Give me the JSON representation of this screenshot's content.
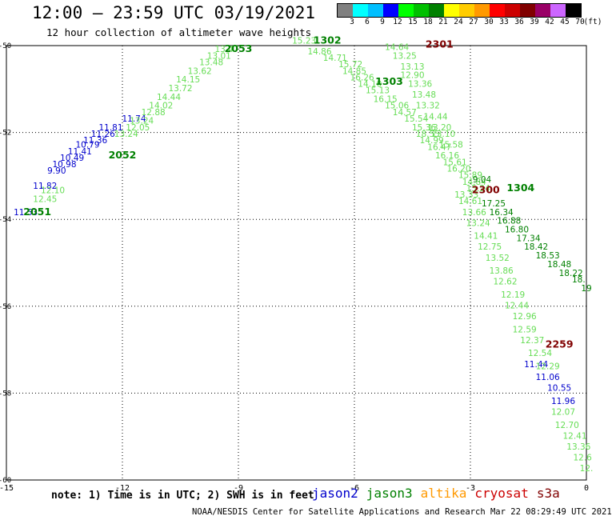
{
  "title": "12:00 – 23:59 UTC 03/19/2021",
  "subtitle": "12 hour collection of altimeter wave heights",
  "legend": {
    "unit": "(ft)",
    "colors": [
      "#808080",
      "#00ffff",
      "#00bfff",
      "#0000ff",
      "#00ff00",
      "#00c000",
      "#008000",
      "#ffff00",
      "#ffcc00",
      "#ff9900",
      "#ff0000",
      "#cc0000",
      "#800000",
      "#990066",
      "#cc66ff",
      "#000000"
    ],
    "labels": [
      "3",
      "6",
      "9",
      "12",
      "15",
      "18",
      "21",
      "24",
      "27",
      "30",
      "33",
      "36",
      "39",
      "42",
      "45",
      "70"
    ]
  },
  "note": "note: 1) Time is in UTC; 2) SWH is in feet",
  "satellites": [
    {
      "name": "jason2",
      "color": "#0000cc"
    },
    {
      "name": "jason3",
      "color": "#008000"
    },
    {
      "name": "altika",
      "color": "#ff9900"
    },
    {
      "name": "cryosat",
      "color": "#cc0000"
    },
    {
      "name": "s3a",
      "color": "#800000"
    }
  ],
  "credit": "NOAA/NESDIS Center for Satellite Applications and Research   Mar 22 08:29:49 UTC 2021",
  "chart_data": {
    "type": "scatter",
    "xlim": [
      -15,
      0
    ],
    "ylim": [
      -60,
      -50
    ],
    "x_ticks": [
      -15,
      -12,
      -9,
      -6,
      -3,
      0
    ],
    "y_ticks": [
      -50,
      -52,
      -54,
      -56,
      -58,
      -60
    ],
    "grid": true,
    "colors": {
      "jason2": "#0000cc",
      "jason3": "#008000",
      "jason3_light": "#66dd55",
      "s3a": "#800000"
    },
    "pass_labels": [
      {
        "text": "2053",
        "x": -9.0,
        "y": -50.15,
        "color": "#008000"
      },
      {
        "text": "2052",
        "x": -12.0,
        "y": -52.6,
        "color": "#008000"
      },
      {
        "text": "2051",
        "x": -14.2,
        "y": -53.9,
        "color": "#008000"
      },
      {
        "text": "1302",
        "x": -6.7,
        "y": -49.95,
        "color": "#008000"
      },
      {
        "text": "1303",
        "x": -5.1,
        "y": -50.9,
        "color": "#008000"
      },
      {
        "text": "1304",
        "x": -1.7,
        "y": -53.35,
        "color": "#008000"
      },
      {
        "text": "2301",
        "x": -3.8,
        "y": -50.05,
        "color": "#800000"
      },
      {
        "text": "2300",
        "x": -2.6,
        "y": -53.4,
        "color": "#800000"
      },
      {
        "text": "2259",
        "x": -0.7,
        "y": -56.95,
        "color": "#800000"
      }
    ],
    "series": [
      {
        "name": "jason2",
        "color": "#0000cc",
        "points": [
          {
            "x": -14.5,
            "y": -53.9,
            "v": "11.53"
          },
          {
            "x": -14.0,
            "y": -53.3,
            "v": "11.82"
          },
          {
            "x": -13.7,
            "y": -52.95,
            "v": "9.90"
          },
          {
            "x": -13.5,
            "y": -52.8,
            "v": "10.98"
          },
          {
            "x": -13.3,
            "y": -52.65,
            "v": "10.49"
          },
          {
            "x": -13.1,
            "y": -52.5,
            "v": "11.41"
          },
          {
            "x": -12.9,
            "y": -52.35,
            "v": "10.79"
          },
          {
            "x": -12.7,
            "y": -52.25,
            "v": "11.36"
          },
          {
            "x": -12.5,
            "y": -52.1,
            "v": "11.26"
          },
          {
            "x": -12.3,
            "y": -51.95,
            "v": "11.81"
          },
          {
            "x": -11.7,
            "y": -51.75,
            "v": "11.74"
          },
          {
            "x": -1.3,
            "y": -57.4,
            "v": "11.44"
          },
          {
            "x": -1.0,
            "y": -57.7,
            "v": "11.06"
          },
          {
            "x": -0.7,
            "y": -57.95,
            "v": "10.55"
          },
          {
            "x": -0.6,
            "y": -58.25,
            "v": "11.96"
          }
        ]
      },
      {
        "name": "jason3",
        "color": "#66dd55",
        "points": [
          {
            "x": -14.0,
            "y": -53.6,
            "v": "12.45"
          },
          {
            "x": -13.8,
            "y": -53.4,
            "v": "12.10"
          },
          {
            "x": -9.3,
            "y": -50.15,
            "v": "13.47"
          },
          {
            "x": -9.5,
            "y": -50.3,
            "v": "13.01"
          },
          {
            "x": -9.7,
            "y": -50.45,
            "v": "13.48"
          },
          {
            "x": -10.0,
            "y": -50.65,
            "v": "13.62"
          },
          {
            "x": -10.3,
            "y": -50.85,
            "v": "14.15"
          },
          {
            "x": -10.5,
            "y": -51.05,
            "v": "13.72"
          },
          {
            "x": -10.8,
            "y": -51.25,
            "v": "14.44"
          },
          {
            "x": -11.0,
            "y": -51.45,
            "v": "14.02"
          },
          {
            "x": -11.2,
            "y": -51.6,
            "v": "12.88"
          },
          {
            "x": -11.5,
            "y": -51.8,
            "v": "13.24"
          },
          {
            "x": -11.6,
            "y": -51.95,
            "v": "12.05"
          },
          {
            "x": -11.9,
            "y": -52.1,
            "v": "13.24"
          },
          {
            "x": -7.3,
            "y": -49.95,
            "v": "15.23"
          },
          {
            "x": -6.9,
            "y": -50.2,
            "v": "14.86"
          },
          {
            "x": -6.5,
            "y": -50.35,
            "v": "14.71"
          },
          {
            "x": -6.1,
            "y": -50.5,
            "v": "15.72"
          },
          {
            "x": -6.0,
            "y": -50.65,
            "v": "14.85"
          },
          {
            "x": -5.8,
            "y": -50.8,
            "v": "16.26"
          },
          {
            "x": -5.6,
            "y": -50.95,
            "v": "14.10"
          },
          {
            "x": -5.4,
            "y": -51.1,
            "v": "15.13"
          },
          {
            "x": -5.2,
            "y": -51.3,
            "v": "16.15"
          },
          {
            "x": -4.9,
            "y": -51.45,
            "v": "15.06"
          },
          {
            "x": -4.7,
            "y": -51.6,
            "v": "14.57"
          },
          {
            "x": -4.4,
            "y": -51.75,
            "v": "15.54"
          },
          {
            "x": -4.2,
            "y": -51.95,
            "v": "15.36"
          },
          {
            "x": -4.1,
            "y": -52.1,
            "v": "18.55"
          },
          {
            "x": -4.0,
            "y": -52.25,
            "v": "14.99"
          },
          {
            "x": -3.8,
            "y": -52.4,
            "v": "16.47"
          },
          {
            "x": -3.6,
            "y": -52.6,
            "v": "16.16"
          },
          {
            "x": -3.4,
            "y": -52.75,
            "v": "15.61"
          },
          {
            "x": -3.3,
            "y": -52.9,
            "v": "16.20"
          },
          {
            "x": -3.0,
            "y": -53.05,
            "v": "15.89"
          },
          {
            "x": -2.9,
            "y": -53.2,
            "v": "14.84"
          },
          {
            "x": -2.8,
            "y": -53.35,
            "v": "15.24"
          },
          {
            "x": -3.1,
            "y": -53.5,
            "v": "13.33"
          },
          {
            "x": -3.0,
            "y": -53.65,
            "v": "14.61"
          },
          {
            "x": -2.9,
            "y": -53.9,
            "v": "13.66"
          },
          {
            "x": -2.8,
            "y": -54.15,
            "v": "13.24"
          },
          {
            "x": -2.6,
            "y": -54.45,
            "v": "14.41"
          },
          {
            "x": -2.5,
            "y": -54.7,
            "v": "12.75"
          },
          {
            "x": -2.3,
            "y": -54.95,
            "v": "13.52"
          },
          {
            "x": -2.2,
            "y": -55.25,
            "v": "13.86"
          },
          {
            "x": -2.1,
            "y": -55.5,
            "v": "12.62"
          },
          {
            "x": -1.9,
            "y": -55.8,
            "v": "12.19"
          },
          {
            "x": -1.8,
            "y": -56.05,
            "v": "12.44"
          },
          {
            "x": -1.6,
            "y": -56.3,
            "v": "12.96"
          },
          {
            "x": -1.6,
            "y": -56.6,
            "v": "12.59"
          },
          {
            "x": -1.4,
            "y": -56.85,
            "v": "12.37"
          },
          {
            "x": -1.2,
            "y": -57.15,
            "v": "12.54"
          },
          {
            "x": -1.0,
            "y": -57.45,
            "v": "12.29"
          },
          {
            "x": -0.6,
            "y": -58.5,
            "v": "12.07"
          },
          {
            "x": -0.5,
            "y": -58.8,
            "v": "12.70"
          },
          {
            "x": -0.3,
            "y": -59.05,
            "v": "12.41"
          },
          {
            "x": -0.2,
            "y": -59.3,
            "v": "13.36"
          },
          {
            "x": -0.1,
            "y": -59.55,
            "v": "12.6"
          },
          {
            "x": 0.0,
            "y": -59.8,
            "v": "12."
          },
          {
            "x": -4.9,
            "y": -50.1,
            "v": "14.64"
          },
          {
            "x": -4.7,
            "y": -50.3,
            "v": "13.25"
          },
          {
            "x": -4.5,
            "y": -50.55,
            "v": "13.13"
          },
          {
            "x": -4.5,
            "y": -50.75,
            "v": "12.90"
          },
          {
            "x": -4.3,
            "y": -50.95,
            "v": "13.36"
          },
          {
            "x": -4.2,
            "y": -51.2,
            "v": "13.48"
          },
          {
            "x": -4.1,
            "y": -51.45,
            "v": "13.32"
          },
          {
            "x": -3.9,
            "y": -51.7,
            "v": "14.44"
          },
          {
            "x": -3.8,
            "y": -51.95,
            "v": "13.20"
          },
          {
            "x": -3.7,
            "y": -52.1,
            "v": "13.10"
          },
          {
            "x": -3.5,
            "y": -52.35,
            "v": "15.58"
          }
        ]
      },
      {
        "name": "jason3-dark",
        "color": "#008000",
        "points": [
          {
            "x": -2.7,
            "y": -53.15,
            "v": "9.04"
          },
          {
            "x": -2.4,
            "y": -53.7,
            "v": "17.25"
          },
          {
            "x": -2.2,
            "y": -53.9,
            "v": "16.34"
          },
          {
            "x": -2.0,
            "y": -54.1,
            "v": "16.88"
          },
          {
            "x": -1.8,
            "y": -54.3,
            "v": "16.80"
          },
          {
            "x": -1.5,
            "y": -54.5,
            "v": "17.34"
          },
          {
            "x": -1.3,
            "y": -54.7,
            "v": "18.42"
          },
          {
            "x": -1.0,
            "y": -54.9,
            "v": "18.53"
          },
          {
            "x": -0.7,
            "y": -55.1,
            "v": "18.48"
          },
          {
            "x": -0.4,
            "y": -55.3,
            "v": "18.22"
          },
          {
            "x": -0.2,
            "y": -55.45,
            "v": "18."
          },
          {
            "x": 0.0,
            "y": -55.65,
            "v": "19"
          }
        ]
      }
    ]
  }
}
